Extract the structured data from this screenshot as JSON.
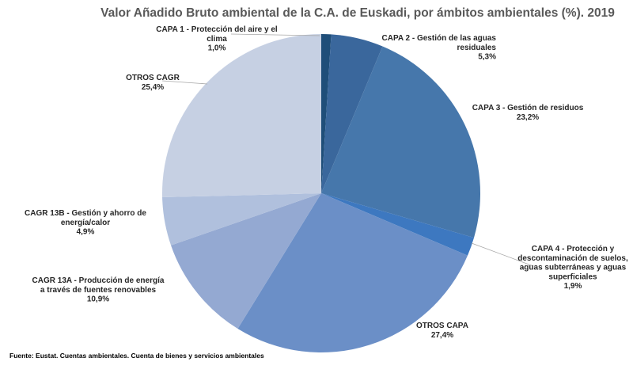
{
  "chart_data": {
    "type": "pie",
    "title": "Valor Añadido Bruto ambiental de la C.A. de Euskadi, por ámbitos ambientales (%). 2019",
    "slices": [
      {
        "label": "CAPA 1 - Protección del aire y el clima",
        "value": 1.0,
        "value_text": "1,0%",
        "color": "#1f4e79"
      },
      {
        "label": "CAPA 2 - Gestión de las aguas residuales",
        "value": 5.3,
        "value_text": "5,3%",
        "color": "#3a679c"
      },
      {
        "label": "CAPA 3 - Gestión de residuos",
        "value": 23.2,
        "value_text": "23,2%",
        "color": "#4677ab"
      },
      {
        "label": "CAPA 4 - Protección y descontaminación de suelos, aguas subterráneas y aguas superficiales",
        "value": 1.9,
        "value_text": "1,9%",
        "color": "#3d78c0"
      },
      {
        "label": "OTROS CAPA",
        "value": 27.4,
        "value_text": "27,4%",
        "color": "#6b8fc7"
      },
      {
        "label": "CAGR 13A - Producción de energía a través de fuentes renovables",
        "value": 10.9,
        "value_text": "10,9%",
        "color": "#94a9d2"
      },
      {
        "label": "CAGR 13B - Gestión y ahorro de energía/calor",
        "value": 4.9,
        "value_text": "4,9%",
        "color": "#b0c0dd"
      },
      {
        "label": "OTROS CAGR",
        "value": 25.4,
        "value_text": "25,4%",
        "color": "#c6d0e3"
      }
    ]
  },
  "source": "Fuente: Eustat. Cuentas ambientales. Cuenta de bienes y servicios ambientales"
}
